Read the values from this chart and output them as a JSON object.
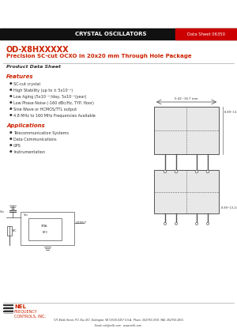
{
  "header_text": "CRYSTAL OSCILLATORS",
  "datasheet_num": "Data Sheet 06350",
  "title_line1": "OD-X8HXXXXX",
  "title_line2": "Precision SC-cut OCXO in 20x20 mm Through Hole Package",
  "product_label": "Product Data Sheet",
  "features_label": "Features",
  "features": [
    "SC-cut crystal",
    "High Stability (up to ± 5x10⁻⁹)",
    "Low Aging (5x10⁻¹⁰/day, 5x10⁻⁸/year)",
    "Low Phase Noise (-160 dBc/Hz, TYP, floor)",
    "Sine Wave or HCMOS/TTL output",
    "4.8 MHz to 160 MHz Frequencies Available"
  ],
  "applications_label": "Applications",
  "applications": [
    "Telecommunication Systems",
    "Data Communications",
    "GPS",
    "Instrumentation"
  ],
  "footer_address": "571 Brokk Street, P.O. Box 457, Darlington, WI 53530-0457 U.S.A.  Phone: 262/763-3591  FAX: 262/763-2831",
  "footer_web": "Email: nel@nelfc.com   www.nelfc.com",
  "bg_color": "#ffffff",
  "header_bg": "#111111",
  "header_fg": "#ffffff",
  "ds_bg": "#cc0000",
  "ds_fg": "#ffffff",
  "red_color": "#cc2200",
  "gray_line": "#aaaaaa",
  "dark_text": "#333333"
}
